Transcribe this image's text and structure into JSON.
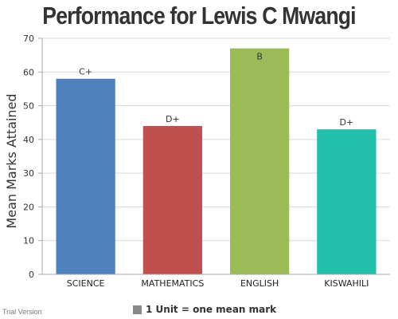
{
  "chart_data": {
    "type": "bar",
    "title": "Performance for Lewis C Mwangi",
    "ylabel": "Mean Marks Attained",
    "xlabel": "",
    "categories": [
      "SCIENCE",
      "MATHEMATICS",
      "ENGLISH",
      "KISWAHILI"
    ],
    "values": [
      58,
      44,
      67,
      43
    ],
    "bar_labels": [
      "C+",
      "D+",
      "B",
      "D+"
    ],
    "colors": [
      "#4f81bd",
      "#c0504d",
      "#9bbb59",
      "#23bfaa"
    ],
    "ylim": [
      0,
      70
    ],
    "yticks": [
      0,
      10,
      20,
      30,
      40,
      50,
      60,
      70
    ],
    "grid": true,
    "legend": {
      "label": "1 Unit = one mean mark",
      "color": "#888888",
      "placement": "bottom"
    }
  },
  "footer": {
    "watermark": "Trial Version"
  }
}
